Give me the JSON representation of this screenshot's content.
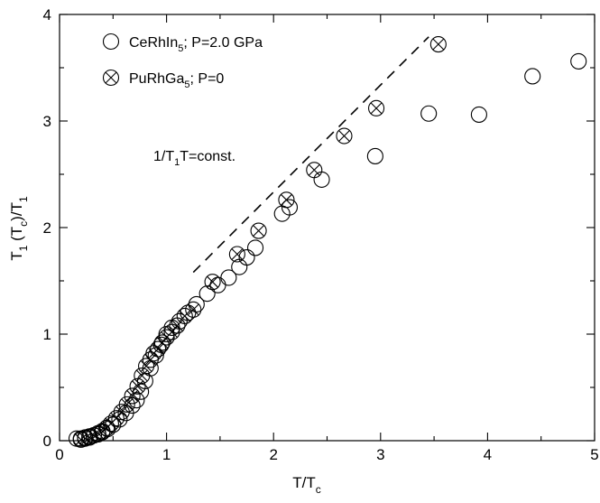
{
  "chart_data": {
    "type": "scatter",
    "xlim": [
      0,
      5
    ],
    "ylim": [
      0,
      4
    ],
    "x_ticks": [
      "0",
      "1",
      "2",
      "3",
      "4",
      "5"
    ],
    "y_ticks": [
      "0",
      "1",
      "2",
      "3",
      "4"
    ],
    "xlabel": {
      "main": "T/T",
      "sub": "c"
    },
    "ylabel": {
      "p1": "T",
      "s1": "1",
      "p2": " (T",
      "s2": "c",
      "p3": ")/T",
      "s3": "1"
    },
    "grid": false,
    "legend_position": "top-left",
    "series": [
      {
        "name": {
          "main": "CeRhIn",
          "sub": "5",
          "rest": "; P=2.0 GPa"
        },
        "marker": "open-circle",
        "x": [
          0.16,
          0.2,
          0.24,
          0.28,
          0.32,
          0.36,
          0.4,
          0.45,
          0.5,
          0.56,
          0.62,
          0.68,
          0.72,
          0.76,
          0.8,
          0.85,
          0.9,
          0.95,
          1.0,
          1.05,
          1.12,
          1.2,
          1.28,
          1.38,
          1.48,
          1.58,
          1.68,
          1.75,
          1.83,
          2.08,
          2.15,
          2.45,
          2.95,
          3.45,
          3.92,
          4.42,
          4.85
        ],
        "y": [
          0.02,
          0.02,
          0.03,
          0.04,
          0.05,
          0.06,
          0.08,
          0.11,
          0.15,
          0.2,
          0.26,
          0.33,
          0.38,
          0.46,
          0.56,
          0.68,
          0.8,
          0.9,
          1.0,
          1.06,
          1.12,
          1.2,
          1.28,
          1.38,
          1.46,
          1.53,
          1.63,
          1.72,
          1.81,
          2.13,
          2.19,
          2.45,
          2.67,
          3.07,
          3.06,
          3.42,
          3.56
        ]
      },
      {
        "name": {
          "main": "PuRhGa",
          "sub": "5",
          "rest": "; P=0"
        },
        "marker": "circle-x",
        "x": [
          0.2,
          0.24,
          0.28,
          0.32,
          0.36,
          0.4,
          0.44,
          0.48,
          0.53,
          0.58,
          0.63,
          0.68,
          0.73,
          0.77,
          0.81,
          0.85,
          0.88,
          0.92,
          0.96,
          1.0,
          1.05,
          1.1,
          1.17,
          1.25,
          1.43,
          1.66,
          1.86,
          2.12,
          2.38,
          2.66,
          2.96,
          3.54
        ],
        "y": [
          0.01,
          0.02,
          0.03,
          0.05,
          0.07,
          0.09,
          0.12,
          0.16,
          0.21,
          0.27,
          0.34,
          0.42,
          0.51,
          0.61,
          0.7,
          0.76,
          0.82,
          0.86,
          0.92,
          0.97,
          1.02,
          1.08,
          1.17,
          1.23,
          1.49,
          1.75,
          1.97,
          2.26,
          2.54,
          2.86,
          3.12,
          3.72
        ]
      }
    ],
    "reference_line": {
      "label": {
        "p1": "1/T",
        "s1": "1",
        "p2": "T=const."
      },
      "style": "dashed",
      "x": [
        1.25,
        3.45
      ],
      "y": [
        1.58,
        3.79
      ]
    }
  }
}
